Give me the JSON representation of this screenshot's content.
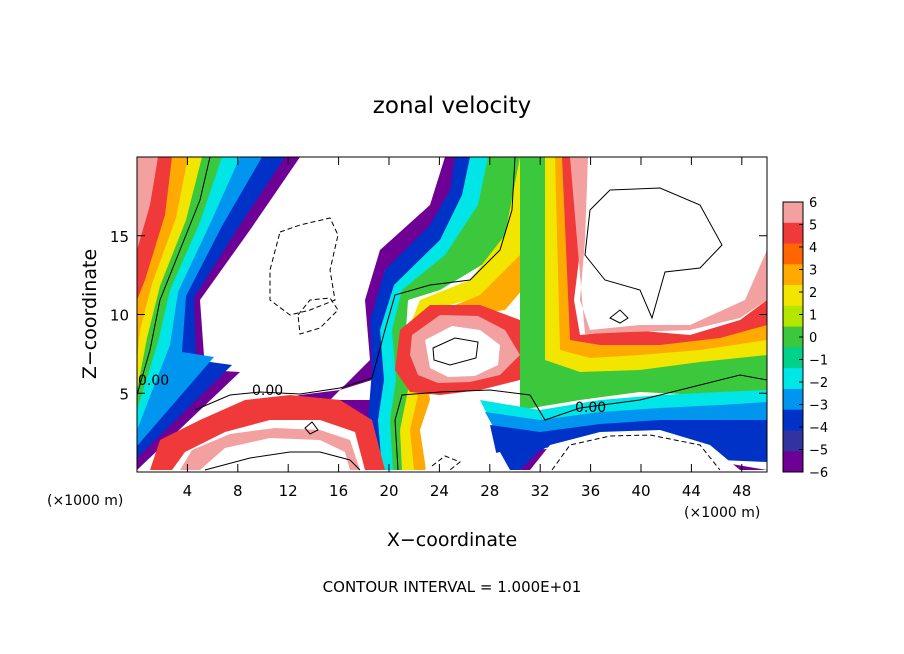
{
  "chart_data": {
    "type": "heatmap",
    "title": "zonal velocity",
    "xlabel": "X−coordinate",
    "ylabel": "Z−coordinate",
    "x_unit_left": "(×1000 m)",
    "x_unit_right": "(×1000 m)",
    "footer": "CONTOUR INTERVAL = 1.000E+01",
    "xlim": [
      0,
      50
    ],
    "ylim": [
      0,
      20
    ],
    "x_ticks": [
      4,
      8,
      12,
      16,
      20,
      24,
      28,
      32,
      36,
      40,
      44,
      48
    ],
    "x_tick_labels": [
      "4",
      "8",
      "12",
      "16",
      "20",
      "24",
      "28",
      "32",
      "36",
      "40",
      "44",
      "48"
    ],
    "y_ticks": [
      5,
      10,
      15
    ],
    "y_tick_labels": [
      "5",
      "10",
      "15"
    ],
    "colorbar": {
      "min": -6,
      "max": 6,
      "tick_labels": [
        "6",
        "5",
        "4",
        "3",
        "2",
        "1",
        "0",
        "−1",
        "−2",
        "−3",
        "−4",
        "−5",
        "−6"
      ],
      "colors": [
        "#f2a0a0",
        "#f03a3a",
        "#ff6600",
        "#ffaa00",
        "#f2e600",
        "#b4e600",
        "#3cc83c",
        "#00d28c",
        "#00e6e6",
        "#0096f0",
        "#0032c8",
        "#3232a0",
        "#6e0096"
      ]
    },
    "contour_labels": [
      {
        "text": "0.00",
        "x": 1,
        "y": 6
      },
      {
        "text": "0.00",
        "x": 9,
        "y": 5
      },
      {
        "text": "0.00",
        "x": 35,
        "y": 4.5
      }
    ]
  }
}
